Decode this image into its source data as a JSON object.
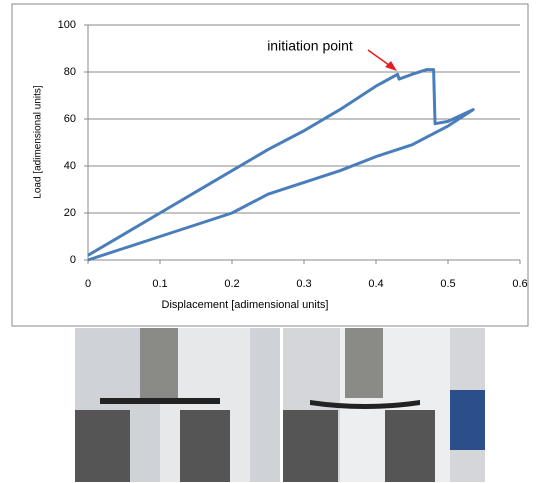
{
  "chart_data": {
    "type": "line",
    "x_label": "Displacement [adimensional units]",
    "y_label": "Load [adimensional units]",
    "annotation": "initiation point",
    "series": [
      {
        "color": "#4a7ebb",
        "x": [
          0,
          0.05,
          0.1,
          0.15,
          0.2,
          0.25,
          0.3,
          0.35,
          0.4,
          0.43,
          0.432,
          0.45,
          0.47,
          0.48,
          0.482,
          0.5,
          0.535,
          0.5,
          0.45,
          0.4,
          0.35,
          0.3,
          0.25,
          0.2,
          0.15,
          0.1,
          0.05,
          0
        ],
        "values": [
          2,
          11,
          20,
          29,
          38,
          47,
          55,
          64,
          74,
          79,
          77,
          79,
          81,
          81,
          58,
          59,
          64,
          57,
          49,
          44,
          38,
          33,
          28,
          20,
          15,
          10,
          5,
          0
        ]
      }
    ],
    "xlim": [
      0,
      0.6
    ],
    "xticks": [
      0,
      0.1,
      0.2,
      0.3,
      0.4,
      0.5,
      0.6
    ],
    "ylim": [
      0,
      100
    ],
    "yticks": [
      0,
      20,
      40,
      60,
      80,
      100
    ],
    "grid": true
  }
}
